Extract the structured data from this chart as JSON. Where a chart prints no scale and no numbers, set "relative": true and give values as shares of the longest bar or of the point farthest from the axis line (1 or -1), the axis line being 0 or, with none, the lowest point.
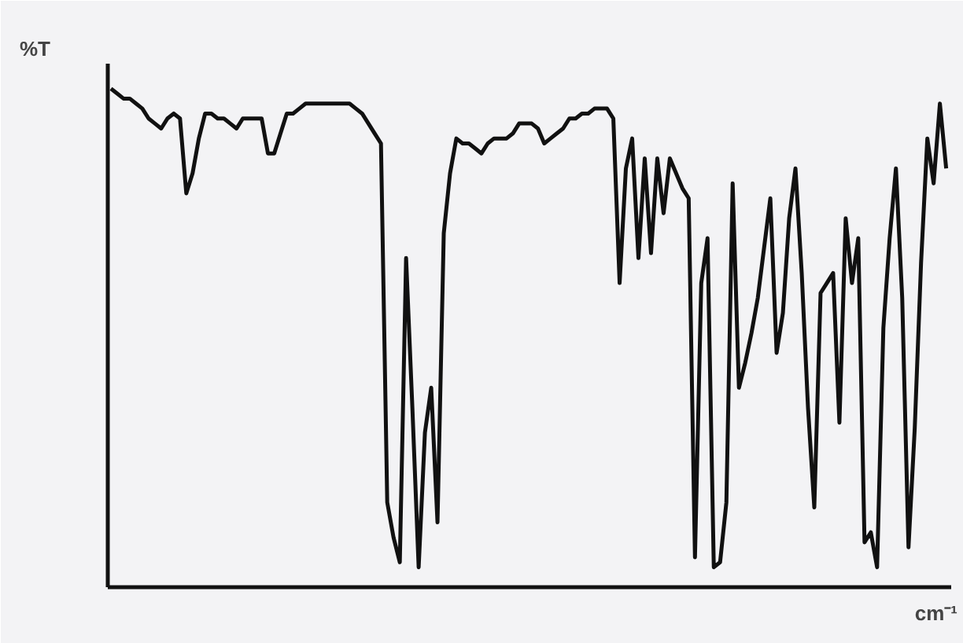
{
  "chart_data": {
    "type": "line",
    "relative": true,
    "ylabel": "%T",
    "xlabel": "cm⁻¹",
    "grid": false,
    "categories": [
      null,
      null,
      null,
      null,
      null,
      null,
      null,
      null,
      null,
      null,
      null,
      null,
      null,
      null,
      null,
      null,
      null,
      null,
      null,
      null,
      null,
      null,
      null,
      null,
      null,
      null,
      null,
      null,
      null,
      null,
      null,
      null,
      null,
      null,
      null,
      null,
      null,
      null,
      null,
      null,
      null,
      null,
      null,
      null,
      null,
      null,
      null,
      null,
      null,
      null,
      null,
      null,
      null,
      null,
      null,
      null,
      null,
      null,
      null,
      null,
      null,
      null,
      null,
      null,
      null,
      null,
      null,
      null,
      null,
      null,
      null,
      null,
      null,
      null,
      null,
      null,
      null,
      null,
      null,
      null,
      null,
      null,
      null,
      null,
      null,
      null,
      null,
      null,
      null,
      null,
      null,
      null,
      null,
      null,
      null,
      null,
      null,
      null,
      null,
      null,
      null,
      null,
      null,
      null,
      null,
      null,
      null,
      null,
      null,
      null,
      null,
      null,
      null,
      null,
      null,
      null,
      null,
      null,
      null,
      null,
      null,
      null,
      null,
      null,
      null,
      null,
      null,
      null,
      null,
      null,
      null,
      null,
      null,
      null
    ],
    "series": [
      {
        "color": "#111111",
        "values": [
          1.0,
          0.99,
          0.98,
          0.98,
          0.97,
          0.96,
          0.94,
          0.93,
          0.92,
          0.94,
          0.95,
          0.94,
          0.79,
          0.83,
          0.9,
          0.95,
          0.95,
          0.94,
          0.94,
          0.93,
          0.92,
          0.94,
          0.94,
          0.94,
          0.94,
          0.87,
          0.87,
          0.91,
          0.95,
          0.95,
          0.96,
          0.97,
          0.97,
          0.97,
          0.97,
          0.97,
          0.97,
          0.97,
          0.97,
          0.96,
          0.95,
          0.93,
          0.91,
          0.89,
          0.17,
          0.1,
          0.05,
          0.66,
          0.36,
          0.04,
          0.31,
          0.4,
          0.13,
          0.71,
          0.83,
          0.9,
          0.89,
          0.89,
          0.88,
          0.87,
          0.89,
          0.9,
          0.9,
          0.9,
          0.91,
          0.93,
          0.93,
          0.93,
          0.92,
          0.89,
          0.9,
          0.91,
          0.92,
          0.94,
          0.94,
          0.95,
          0.95,
          0.96,
          0.96,
          0.96,
          0.94,
          0.61,
          0.84,
          0.9,
          0.66,
          0.86,
          0.67,
          0.86,
          0.75,
          0.86,
          0.83,
          0.8,
          0.78,
          0.06,
          0.61,
          0.7,
          0.04,
          0.05,
          0.17,
          0.81,
          0.4,
          0.45,
          0.51,
          0.58,
          0.68,
          0.78,
          0.47,
          0.55,
          0.74,
          0.84,
          0.63,
          0.36,
          0.16,
          0.59,
          0.61,
          0.63,
          0.33,
          0.74,
          0.61,
          0.7,
          0.09,
          0.11,
          0.04,
          0.52,
          0.7,
          0.84,
          0.58,
          0.08,
          0.32,
          0.65,
          0.9,
          0.81,
          0.97,
          0.84
        ]
      }
    ]
  }
}
